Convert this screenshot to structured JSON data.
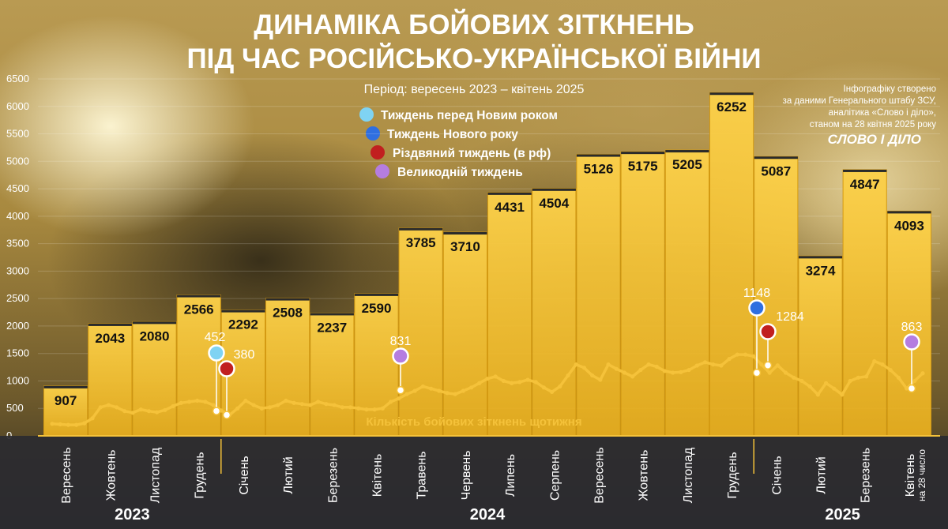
{
  "header": {
    "title_line1": "ДИНАМІКА БОЙОВИХ ЗІТКНЕНЬ",
    "title_line2": "ПІД ЧАС РОСІЙСЬКО-УКРАЇНСЬКОЇ ВІЙНИ",
    "period": "Період: вересень 2023 – квітень 2025"
  },
  "credit": {
    "lines": [
      "Інфографіку створено",
      "за даними Генерального штабу ЗСУ,",
      "аналітика «Слово і діло»,",
      "станом на 28 квітня 2025 року"
    ],
    "logo": "СЛОВО І ДІЛО"
  },
  "legend": [
    {
      "label": "Тиждень перед Новим роком",
      "color": "#7fd3f3"
    },
    {
      "label": "Тиждень Нового року",
      "color": "#2f6fe0"
    },
    {
      "label": "Різдвяний тиждень (в рф)",
      "color": "#c11f1f"
    },
    {
      "label": "Великодній тиждень",
      "color": "#b57de0"
    }
  ],
  "colors": {
    "bar": "#f6c12c",
    "bar_stroke": "#d49a12",
    "line": "#f5c23a",
    "axis_band": "#2b2b30"
  },
  "chart_data": {
    "type": "bar",
    "ylim": [
      0,
      6500
    ],
    "yticks": [
      "0",
      "500",
      "1000",
      "1500",
      "2000",
      "2500",
      "3000",
      "3500",
      "4000",
      "4500",
      "5000",
      "5500",
      "6000",
      "6500"
    ],
    "categories": [
      "Вересень",
      "Жовтень",
      "Листопад",
      "Грудень",
      "Січень",
      "Лютий",
      "Березень",
      "Квітень",
      "Травень",
      "Червень",
      "Липень",
      "Серпень",
      "Вересень",
      "Жовтень",
      "Листопад",
      "Грудень",
      "Січень",
      "Лютий",
      "Березень",
      "Квітень"
    ],
    "category_note": {
      "index": 19,
      "text": "на 28 число"
    },
    "years": [
      {
        "label": "2023",
        "from": 0,
        "to": 3
      },
      {
        "label": "2024",
        "from": 4,
        "to": 15
      },
      {
        "label": "2025",
        "from": 16,
        "to": 19
      }
    ],
    "values": [
      907,
      2043,
      2080,
      2566,
      2292,
      2508,
      2237,
      2590,
      3785,
      3710,
      4431,
      4504,
      5126,
      5175,
      5205,
      6252,
      5087,
      3274,
      4847,
      4093
    ],
    "weekly_series": {
      "name": "Кількість бойових зіткнень щотижня",
      "values": [
        220,
        210,
        200,
        200,
        230,
        320,
        520,
        560,
        520,
        450,
        420,
        480,
        450,
        430,
        470,
        540,
        600,
        620,
        640,
        620,
        560,
        460,
        380,
        500,
        640,
        560,
        500,
        520,
        560,
        640,
        600,
        580,
        560,
        620,
        580,
        560,
        520,
        520,
        500,
        480,
        480,
        500,
        620,
        680,
        760,
        820,
        900,
        860,
        820,
        780,
        760,
        820,
        880,
        960,
        1040,
        1080,
        1000,
        960,
        980,
        1020,
        980,
        880,
        800,
        900,
        1100,
        1300,
        1240,
        1100,
        1020,
        1300,
        1220,
        1150,
        1080,
        1200,
        1300,
        1260,
        1180,
        1150,
        1160,
        1200,
        1280,
        1340,
        1300,
        1280,
        1400,
        1480,
        1480,
        1450,
        1300,
        1148,
        1284,
        1150,
        1060,
        1000,
        900,
        750,
        960,
        860,
        750,
        1000,
        1060,
        1080,
        1360,
        1300,
        1200,
        1060,
        863,
        1000,
        1140
      ]
    },
    "annotations": [
      {
        "label": "452",
        "type": "before_new_year",
        "color": "#7fd3f3",
        "value": 452
      },
      {
        "label": "380",
        "type": "christmas_rf",
        "color": "#c11f1f",
        "value": 380
      },
      {
        "label": "831",
        "type": "easter",
        "color": "#b57de0",
        "value": 831
      },
      {
        "label": "1148",
        "type": "new_year",
        "color": "#2f6fe0",
        "value": 1148
      },
      {
        "label": "1284",
        "type": "christmas_rf",
        "color": "#c11f1f",
        "value": 1284
      },
      {
        "label": "863",
        "type": "easter",
        "color": "#b57de0",
        "value": 863
      }
    ]
  }
}
